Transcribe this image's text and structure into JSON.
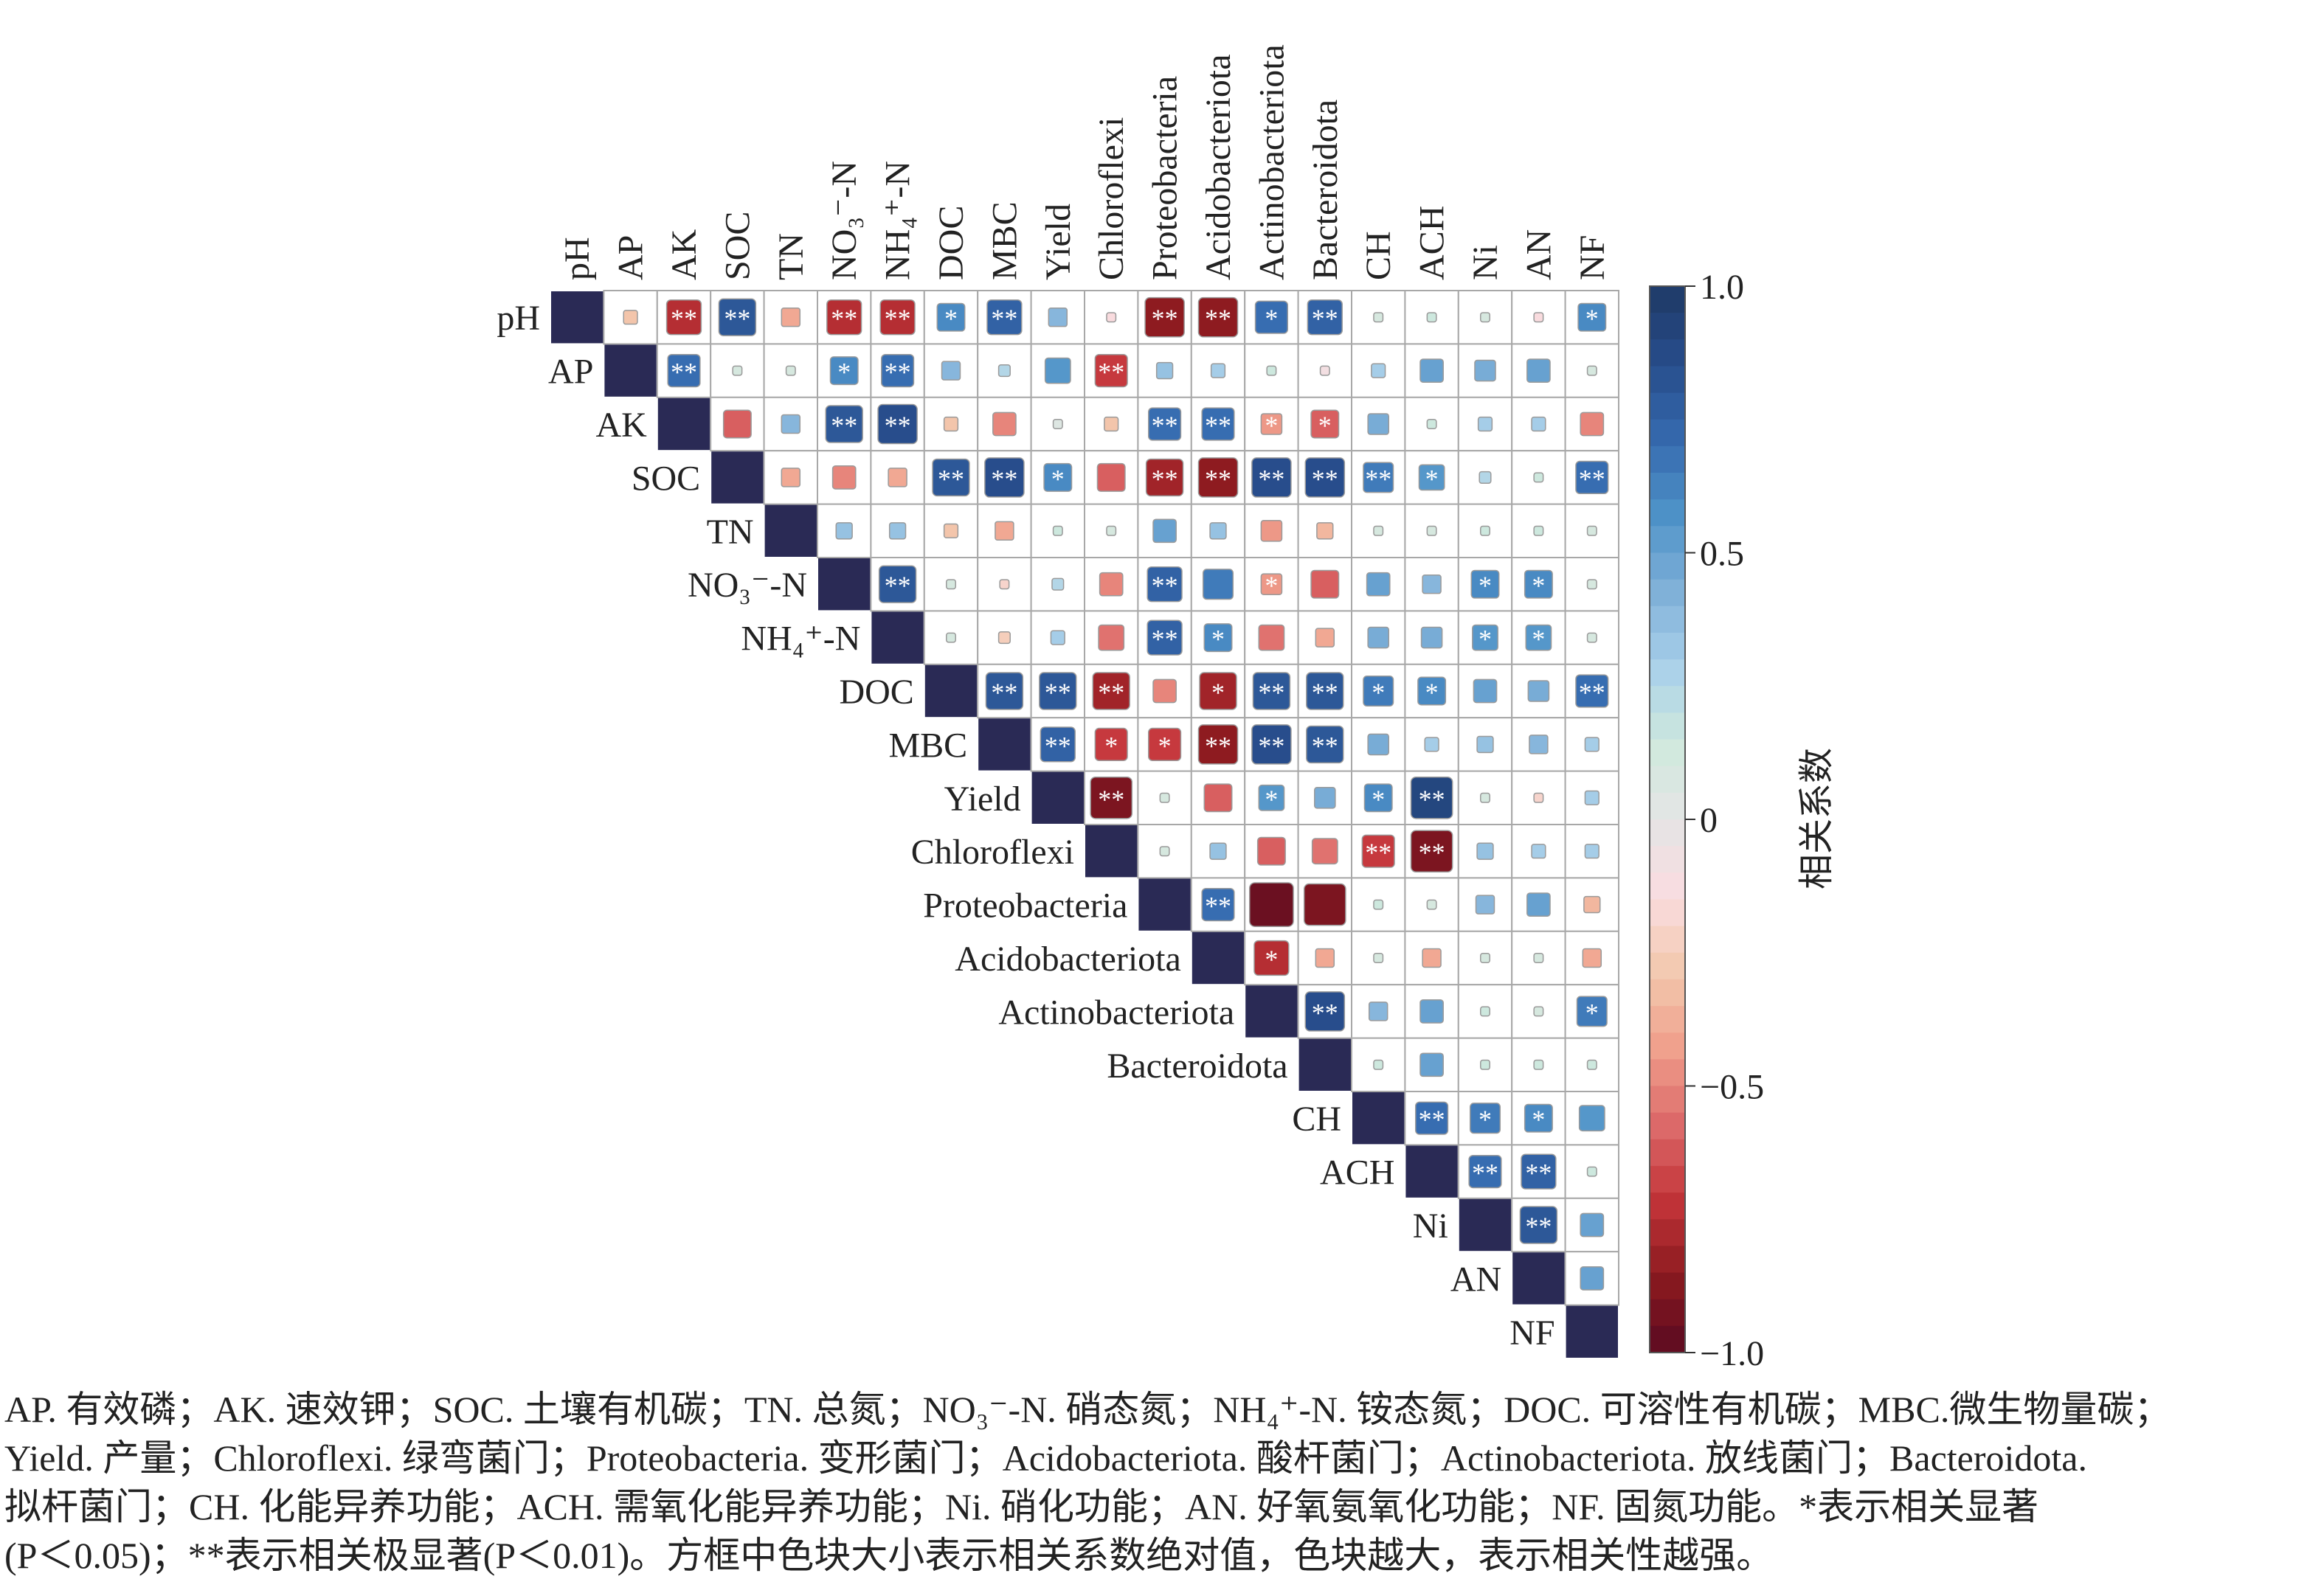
{
  "chart_data": {
    "type": "heatmap",
    "subtype": "upper-triangle correlation matrix (square size = |r|)",
    "variables": [
      {
        "key": "pH",
        "label": "pH"
      },
      {
        "key": "AP",
        "label": "AP"
      },
      {
        "key": "AK",
        "label": "AK"
      },
      {
        "key": "SOC",
        "label": "SOC"
      },
      {
        "key": "TN",
        "label": "TN"
      },
      {
        "key": "NO3-N",
        "label": "NO₃⁻-N"
      },
      {
        "key": "NH4-N",
        "label": "NH₄⁺-N"
      },
      {
        "key": "DOC",
        "label": "DOC"
      },
      {
        "key": "MBC",
        "label": "MBC"
      },
      {
        "key": "Yield",
        "label": "Yield"
      },
      {
        "key": "Chloroflexi",
        "label": "Chloroflexi"
      },
      {
        "key": "Proteobacteria",
        "label": "Proteobacteria"
      },
      {
        "key": "Acidobacteriota",
        "label": "Acidobacteriota"
      },
      {
        "key": "Actinobacteriota",
        "label": "Actinobacteriota"
      },
      {
        "key": "Bacteroidota",
        "label": "Bacteroidota"
      },
      {
        "key": "CH",
        "label": "CH"
      },
      {
        "key": "ACH",
        "label": "ACH"
      },
      {
        "key": "Ni",
        "label": "Ni"
      },
      {
        "key": "AN",
        "label": "AN"
      },
      {
        "key": "NF",
        "label": "NF"
      }
    ],
    "matrix": [
      [
        1.0,
        -0.3,
        -0.75,
        0.8,
        -0.4,
        -0.75,
        -0.75,
        0.6,
        0.75,
        0.4,
        -0.15,
        -0.85,
        -0.85,
        0.7,
        0.75,
        0.1,
        0.15,
        0.1,
        -0.15,
        0.6
      ],
      [
        null,
        1.0,
        0.7,
        0.1,
        0.1,
        0.6,
        0.7,
        0.4,
        0.25,
        0.55,
        -0.7,
        0.35,
        0.3,
        0.15,
        -0.1,
        0.3,
        0.5,
        0.45,
        0.5,
        0.1
      ],
      [
        null,
        null,
        1.0,
        -0.6,
        0.4,
        0.8,
        0.85,
        -0.3,
        -0.5,
        0.05,
        -0.3,
        0.7,
        0.7,
        -0.45,
        -0.6,
        0.45,
        0.15,
        0.3,
        0.3,
        -0.5
      ],
      [
        null,
        null,
        null,
        1.0,
        -0.4,
        -0.5,
        -0.4,
        0.8,
        0.85,
        0.6,
        -0.6,
        -0.8,
        -0.85,
        0.85,
        0.85,
        0.65,
        0.55,
        0.25,
        0.15,
        0.7
      ],
      [
        null,
        null,
        null,
        null,
        1.0,
        0.35,
        0.35,
        -0.3,
        -0.4,
        0.15,
        0.1,
        0.5,
        0.35,
        -0.45,
        -0.35,
        0.1,
        0.1,
        0.15,
        0.15,
        0.1
      ],
      [
        null,
        null,
        null,
        null,
        null,
        1.0,
        0.8,
        0.1,
        -0.2,
        0.25,
        -0.5,
        0.75,
        0.65,
        -0.45,
        -0.6,
        0.5,
        0.4,
        0.6,
        0.6,
        0.1
      ],
      [
        null,
        null,
        null,
        null,
        null,
        null,
        1.0,
        0.1,
        -0.25,
        0.3,
        -0.55,
        0.75,
        0.6,
        -0.55,
        -0.4,
        0.45,
        0.45,
        0.55,
        0.55,
        0.1
      ],
      [
        null,
        null,
        null,
        null,
        null,
        null,
        null,
        1.0,
        0.8,
        0.8,
        -0.8,
        -0.5,
        -0.8,
        0.8,
        0.8,
        0.65,
        0.6,
        0.5,
        0.45,
        0.7
      ],
      [
        null,
        null,
        null,
        null,
        null,
        null,
        null,
        null,
        1.0,
        0.75,
        -0.7,
        -0.7,
        -0.85,
        0.85,
        0.8,
        0.45,
        0.3,
        0.35,
        0.4,
        0.3
      ],
      [
        null,
        null,
        null,
        null,
        null,
        null,
        null,
        null,
        null,
        1.0,
        -0.9,
        0.1,
        -0.6,
        0.55,
        0.45,
        0.6,
        0.9,
        0.1,
        -0.2,
        0.3
      ],
      [
        null,
        null,
        null,
        null,
        null,
        null,
        null,
        null,
        null,
        null,
        1.0,
        0.1,
        0.35,
        -0.6,
        -0.55,
        -0.7,
        -0.9,
        0.35,
        0.3,
        0.3
      ],
      [
        null,
        null,
        null,
        null,
        null,
        null,
        null,
        null,
        null,
        null,
        null,
        1.0,
        0.7,
        -0.95,
        -0.9,
        0.15,
        0.1,
        0.4,
        0.5,
        -0.35
      ],
      [
        null,
        null,
        null,
        null,
        null,
        null,
        null,
        null,
        null,
        null,
        null,
        null,
        1.0,
        -0.75,
        -0.4,
        0.1,
        -0.4,
        0.1,
        0.1,
        -0.4
      ],
      [
        null,
        null,
        null,
        null,
        null,
        null,
        null,
        null,
        null,
        null,
        null,
        null,
        null,
        1.0,
        0.85,
        0.4,
        0.5,
        0.15,
        0.1,
        0.65
      ],
      [
        null,
        null,
        null,
        null,
        null,
        null,
        null,
        null,
        null,
        null,
        null,
        null,
        null,
        null,
        1.0,
        0.15,
        0.5,
        0.15,
        0.15,
        0.15
      ],
      [
        null,
        null,
        null,
        null,
        null,
        null,
        null,
        null,
        null,
        null,
        null,
        null,
        null,
        null,
        null,
        1.0,
        0.7,
        0.65,
        0.6,
        0.55
      ],
      [
        null,
        null,
        null,
        null,
        null,
        null,
        null,
        null,
        null,
        null,
        null,
        null,
        null,
        null,
        null,
        null,
        1.0,
        0.7,
        0.75,
        0.15
      ],
      [
        null,
        null,
        null,
        null,
        null,
        null,
        null,
        null,
        null,
        null,
        null,
        null,
        null,
        null,
        null,
        null,
        null,
        1.0,
        0.8,
        0.5
      ],
      [
        null,
        null,
        null,
        null,
        null,
        null,
        null,
        null,
        null,
        null,
        null,
        null,
        null,
        null,
        null,
        null,
        null,
        null,
        1.0,
        0.5
      ],
      [
        null,
        null,
        null,
        null,
        null,
        null,
        null,
        null,
        null,
        null,
        null,
        null,
        null,
        null,
        null,
        null,
        null,
        null,
        null,
        1.0
      ]
    ],
    "significance": [
      [
        "",
        "",
        "**",
        "**",
        "",
        "**",
        "**",
        "*",
        "**",
        "",
        "",
        "**",
        "**",
        "*",
        "**",
        "",
        "",
        "",
        "",
        "*"
      ],
      [
        "",
        "",
        "**",
        "",
        "",
        "*",
        "**",
        "",
        "",
        "",
        "**",
        "",
        "",
        "",
        "",
        "",
        "",
        "",
        "",
        ""
      ],
      [
        "",
        "",
        "",
        "",
        "",
        "**",
        "**",
        "",
        "",
        "",
        "",
        "**",
        "**",
        "*",
        "*",
        "",
        "",
        "",
        "",
        ""
      ],
      [
        "",
        "",
        "",
        "",
        "",
        "",
        "",
        "**",
        "**",
        "*",
        "",
        "**",
        "**",
        "**",
        "**",
        "**",
        "*",
        "",
        "",
        "**"
      ],
      [
        "",
        "",
        "",
        "",
        "",
        "",
        "",
        "",
        "",
        "",
        "",
        "",
        "",
        "",
        "",
        "",
        "",
        "",
        "",
        ""
      ],
      [
        "",
        "",
        "",
        "",
        "",
        "",
        "**",
        "",
        "",
        "",
        "",
        "**",
        "",
        "*",
        "",
        "",
        "",
        "*",
        "*",
        ""
      ],
      [
        "",
        "",
        "",
        "",
        "",
        "",
        "",
        "",
        "",
        "",
        "",
        "**",
        "*",
        "",
        "",
        "",
        "",
        "*",
        "*",
        ""
      ],
      [
        "",
        "",
        "",
        "",
        "",
        "",
        "",
        "",
        "**",
        "**",
        "**",
        "",
        "*",
        "**",
        "**",
        "*",
        "*",
        "",
        "",
        "**"
      ],
      [
        "",
        "",
        "",
        "",
        "",
        "",
        "",
        "",
        "",
        "**",
        "*",
        "*",
        "**",
        "**",
        "**",
        "",
        "",
        "",
        "",
        ""
      ],
      [
        "",
        "",
        "",
        "",
        "",
        "",
        "",
        "",
        "",
        "",
        "**",
        "",
        "",
        "*",
        "",
        "*",
        "**",
        "",
        "",
        ""
      ],
      [
        "",
        "",
        "",
        "",
        "",
        "",
        "",
        "",
        "",
        "",
        "",
        "",
        "",
        "",
        "",
        "**",
        "**",
        "",
        "",
        ""
      ],
      [
        "",
        "",
        "",
        "",
        "",
        "",
        "",
        "",
        "",
        "",
        "",
        "",
        "**",
        "",
        "",
        "",
        "",
        "",
        "",
        ""
      ],
      [
        "",
        "",
        "",
        "",
        "",
        "",
        "",
        "",
        "",
        "",
        "",
        "",
        "",
        "*",
        "",
        "",
        "",
        "",
        "",
        ""
      ],
      [
        "",
        "",
        "",
        "",
        "",
        "",
        "",
        "",
        "",
        "",
        "",
        "",
        "",
        "",
        "**",
        "",
        "",
        "",
        "",
        "*"
      ],
      [
        "",
        "",
        "",
        "",
        "",
        "",
        "",
        "",
        "",
        "",
        "",
        "",
        "",
        "",
        "",
        "",
        "",
        "",
        "",
        ""
      ],
      [
        "",
        "",
        "",
        "",
        "",
        "",
        "",
        "",
        "",
        "",
        "",
        "",
        "",
        "",
        "",
        "",
        "**",
        "*",
        "*",
        ""
      ],
      [
        "",
        "",
        "",
        "",
        "",
        "",
        "",
        "",
        "",
        "",
        "",
        "",
        "",
        "",
        "",
        "",
        "",
        "**",
        "**",
        ""
      ],
      [
        "",
        "",
        "",
        "",
        "",
        "",
        "",
        "",
        "",
        "",
        "",
        "",
        "",
        "",
        "",
        "",
        "",
        "",
        "**",
        ""
      ],
      [
        "",
        "",
        "",
        "",
        "",
        "",
        "",
        "",
        "",
        "",
        "",
        "",
        "",
        "",
        "",
        "",
        "",
        "",
        "",
        ""
      ],
      [
        "",
        "",
        "",
        "",
        "",
        "",
        "",
        "",
        "",
        "",
        "",
        "",
        "",
        "",
        "",
        "",
        "",
        "",
        "",
        ""
      ]
    ],
    "colorbar": {
      "label": "相关系数",
      "range": [
        -1.0,
        1.0
      ],
      "ticks": [
        "1.0",
        "0.5",
        "0",
        "−0.5",
        "−1.0"
      ],
      "tick_values": [
        1.0,
        0.5,
        0,
        -0.5,
        -1.0
      ],
      "colors_low_to_high": [
        "#5a0a22",
        "#8b1a1f",
        "#c33439",
        "#dd6a6a",
        "#f0a08c",
        "#f3c9ae",
        "#f9dce0",
        "#e5e5e5",
        "#cfe9dd",
        "#a9d0ea",
        "#7fb0d8",
        "#4e92c8",
        "#3569ae",
        "#274c8a",
        "#1e3a66"
      ]
    },
    "grid": true,
    "legend": "colorbar-right"
  },
  "caption": {
    "line1": "AP. 有效磷；AK. 速效钾；SOC. 土壤有机碳；TN. 总氮；NO₃⁻-N. 硝态氮；NH₄⁺-N. 铵态氮；DOC. 可溶性有机碳；MBC.微生物量碳；",
    "line2": "Yield. 产量；Chloroflexi. 绿弯菌门；Proteobacteria. 变形菌门；Acidobacteriota. 酸杆菌门；Actinobacteriota. 放线菌门；Bacteroidota.",
    "line3": "拟杆菌门；CH. 化能异养功能；ACH. 需氧化能异养功能；Ni. 硝化功能；AN. 好氧氨氧化功能；NF. 固氮功能。*表示相关显著",
    "line4": "(P＜0.05)；**表示相关极显著(P＜0.01)。方框中色块大小表示相关系数绝对值，色块越大，表示相关性越强。"
  }
}
